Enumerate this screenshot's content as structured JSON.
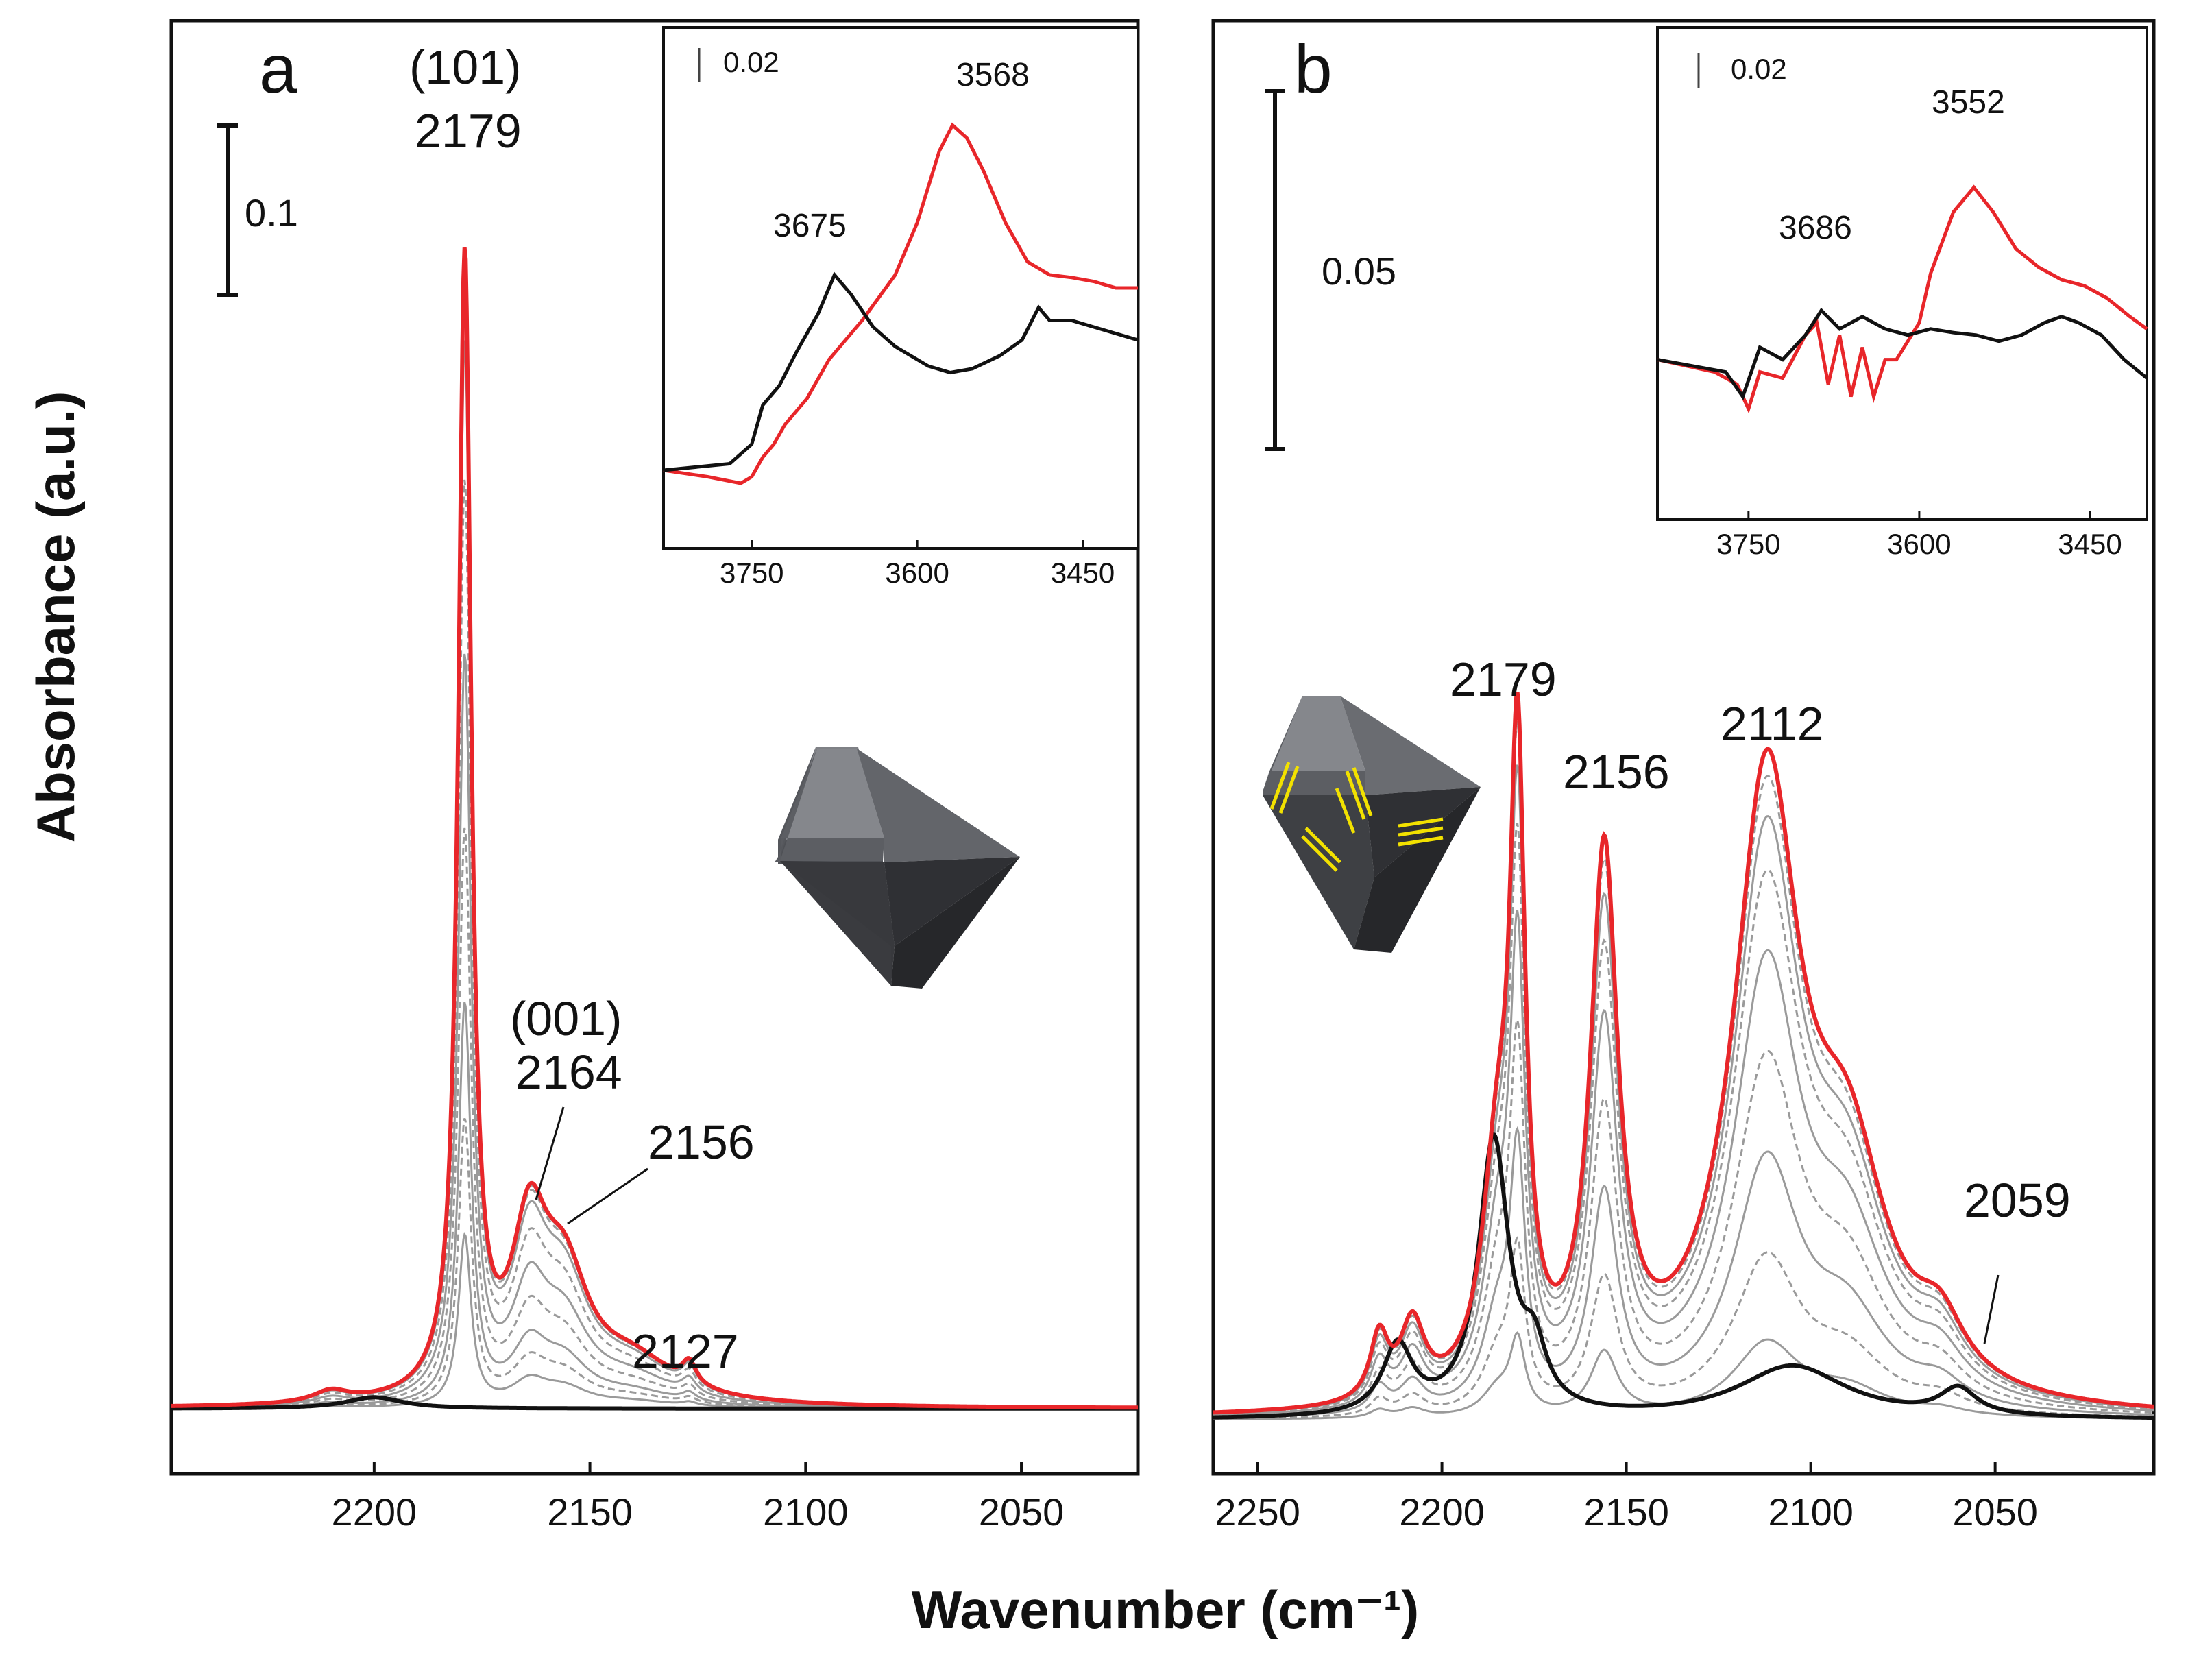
{
  "colors": {
    "activated": "#e8262a",
    "before": "#111111",
    "intermediate": "#9a9a9a",
    "octahedron": "#55575c",
    "adsorbate": "#f2e100"
  },
  "axis_labels": {
    "x": "Wavenumber (cm⁻¹)",
    "y": "Absorbance (a.u.)"
  },
  "chart_data": [
    {
      "id": "a",
      "type": "line",
      "panel_label": "a",
      "x_ticks": [
        2200,
        2150,
        2100,
        2050
      ],
      "xlim": [
        2247,
        2023
      ],
      "ylim": [
        -0.01,
        0.36
      ],
      "scale_bar": {
        "value": 0.1,
        "label": "0.1"
      },
      "peak_labels": [
        "(101)",
        "2179",
        "(001)",
        "2164",
        "2156",
        "2127"
      ],
      "peaks": [
        {
          "x": 2179,
          "label": "2179",
          "face": "(101)"
        },
        {
          "x": 2164,
          "label": "2164",
          "face": "(001)"
        },
        {
          "x": 2156,
          "label": "2156"
        },
        {
          "x": 2127,
          "label": "2127"
        }
      ],
      "series": [
        {
          "color": "#e8262a",
          "components": [
            {
              "center": 2179,
              "height": 0.3,
              "width": 1.8
            },
            {
              "center": 2164,
              "height": 0.04,
              "width": 5
            },
            {
              "center": 2156,
              "height": 0.03,
              "width": 7
            },
            {
              "center": 2140,
              "height": 0.01,
              "width": 12
            },
            {
              "center": 2127,
              "height": 0.006,
              "width": 2
            },
            {
              "center": 2210,
              "height": 0.003,
              "width": 5
            }
          ]
        },
        {
          "color": "#111111",
          "components": [
            {
              "center": 2200,
              "height": 0.003,
              "width": 8
            }
          ]
        }
      ],
      "intermediate_scales": [
        0.15,
        0.25,
        0.35,
        0.5,
        0.65,
        0.8,
        0.92,
        0.97,
        0.99
      ],
      "inset": {
        "x_ticks": [
          3750,
          3600,
          3450
        ],
        "xlim": [
          3830,
          3400
        ],
        "ylim": [
          -0.15,
          0.25
        ],
        "scale_bar": {
          "value": 0.02,
          "label": "0.02"
        },
        "peak_labels": [
          "3568",
          "3675"
        ],
        "series": [
          {
            "color": "#e8262a",
            "points": [
              [
                3830,
                -0.09
              ],
              [
                3790,
                -0.095
              ],
              [
                3760,
                -0.1
              ],
              [
                3750,
                -0.095
              ],
              [
                3740,
                -0.08
              ],
              [
                3730,
                -0.07
              ],
              [
                3720,
                -0.055
              ],
              [
                3700,
                -0.035
              ],
              [
                3680,
                -0.005
              ],
              [
                3650,
                0.025
              ],
              [
                3620,
                0.06
              ],
              [
                3600,
                0.1
              ],
              [
                3580,
                0.155
              ],
              [
                3568,
                0.175
              ],
              [
                3555,
                0.165
              ],
              [
                3540,
                0.14
              ],
              [
                3520,
                0.1
              ],
              [
                3500,
                0.07
              ],
              [
                3480,
                0.06
              ],
              [
                3460,
                0.058
              ],
              [
                3440,
                0.055
              ],
              [
                3420,
                0.05
              ],
              [
                3400,
                0.05
              ]
            ]
          },
          {
            "color": "#111111",
            "points": [
              [
                3830,
                -0.09
              ],
              [
                3770,
                -0.085
              ],
              [
                3750,
                -0.07
              ],
              [
                3740,
                -0.04
              ],
              [
                3725,
                -0.025
              ],
              [
                3710,
                0.0
              ],
              [
                3690,
                0.03
              ],
              [
                3675,
                0.06
              ],
              [
                3660,
                0.045
              ],
              [
                3640,
                0.02
              ],
              [
                3620,
                0.005
              ],
              [
                3590,
                -0.01
              ],
              [
                3570,
                -0.015
              ],
              [
                3550,
                -0.012
              ],
              [
                3525,
                -0.002
              ],
              [
                3505,
                0.01
              ],
              [
                3490,
                0.035
              ],
              [
                3480,
                0.025
              ],
              [
                3460,
                0.025
              ],
              [
                3440,
                0.02
              ],
              [
                3420,
                0.015
              ],
              [
                3400,
                0.01
              ]
            ]
          }
        ]
      }
    },
    {
      "id": "b",
      "type": "line",
      "panel_label": "b",
      "x_ticks": [
        2250,
        2200,
        2150,
        2100,
        2050
      ],
      "xlim": [
        2262,
        2007
      ],
      "ylim": [
        -0.005,
        0.26
      ],
      "scale_bar": {
        "value": 0.05,
        "label": "0.05"
      },
      "peak_labels": [
        "2179",
        "2156",
        "2112",
        "2059"
      ],
      "peaks": [
        {
          "x": 2179,
          "label": "2179"
        },
        {
          "x": 2156,
          "label": "2156"
        },
        {
          "x": 2112,
          "label": "2112"
        },
        {
          "x": 2059,
          "label": "2059"
        }
      ],
      "series": [
        {
          "color": "#e8262a",
          "components": [
            {
              "center": 2179.5,
              "height": 0.112,
              "width": 2.5
            },
            {
              "center": 2156,
              "height": 0.1,
              "width": 4.5
            },
            {
              "center": 2112,
              "height": 0.115,
              "width": 11
            },
            {
              "center": 2090,
              "height": 0.04,
              "width": 13
            },
            {
              "center": 2185,
              "height": 0.04,
              "width": 5
            },
            {
              "center": 2065,
              "height": 0.01,
              "width": 8
            },
            {
              "center": 2217,
              "height": 0.012,
              "width": 3
            },
            {
              "center": 2208,
              "height": 0.014,
              "width": 4
            }
          ]
        },
        {
          "color": "#111111",
          "components": [
            {
              "center": 2186,
              "height": 0.052,
              "width": 5
            },
            {
              "center": 2175,
              "height": 0.01,
              "width": 4
            },
            {
              "center": 2212,
              "height": 0.013,
              "width": 5
            },
            {
              "center": 2105,
              "height": 0.01,
              "width": 18
            },
            {
              "center": 2060,
              "height": 0.005,
              "width": 6
            }
          ]
        }
      ],
      "intermediate_scales": [
        0.12,
        0.25,
        0.4,
        0.55,
        0.7,
        0.82,
        0.9,
        0.96
      ],
      "inset": {
        "x_ticks": [
          3750,
          3600,
          3450
        ],
        "xlim": [
          3830,
          3400
        ],
        "ylim": [
          -0.15,
          0.25
        ],
        "scale_bar": {
          "value": 0.02,
          "label": "0.02"
        },
        "peak_labels": [
          "3552",
          "3686"
        ],
        "series": [
          {
            "color": "#e8262a",
            "points": [
              [
                3830,
                -0.02
              ],
              [
                3780,
                -0.03
              ],
              [
                3760,
                -0.04
              ],
              [
                3750,
                -0.06
              ],
              [
                3740,
                -0.03
              ],
              [
                3720,
                -0.035
              ],
              [
                3700,
                0.0
              ],
              [
                3690,
                0.01
              ],
              [
                3680,
                -0.04
              ],
              [
                3670,
                0.0
              ],
              [
                3660,
                -0.05
              ],
              [
                3650,
                -0.01
              ],
              [
                3640,
                -0.05
              ],
              [
                3630,
                -0.02
              ],
              [
                3620,
                -0.02
              ],
              [
                3600,
                0.01
              ],
              [
                3590,
                0.05
              ],
              [
                3570,
                0.1
              ],
              [
                3552,
                0.12
              ],
              [
                3535,
                0.1
              ],
              [
                3515,
                0.07
              ],
              [
                3495,
                0.055
              ],
              [
                3475,
                0.045
              ],
              [
                3455,
                0.04
              ],
              [
                3435,
                0.03
              ],
              [
                3415,
                0.015
              ],
              [
                3400,
                0.005
              ]
            ]
          },
          {
            "color": "#111111",
            "points": [
              [
                3830,
                -0.02
              ],
              [
                3770,
                -0.03
              ],
              [
                3755,
                -0.05
              ],
              [
                3740,
                -0.01
              ],
              [
                3720,
                -0.02
              ],
              [
                3700,
                0.0
              ],
              [
                3686,
                0.02
              ],
              [
                3670,
                0.005
              ],
              [
                3650,
                0.015
              ],
              [
                3630,
                0.005
              ],
              [
                3610,
                0.0
              ],
              [
                3590,
                0.005
              ],
              [
                3570,
                0.002
              ],
              [
                3550,
                0.0
              ],
              [
                3530,
                -0.005
              ],
              [
                3510,
                0.0
              ],
              [
                3490,
                0.01
              ],
              [
                3475,
                0.015
              ],
              [
                3460,
                0.01
              ],
              [
                3440,
                0.0
              ],
              [
                3420,
                -0.02
              ],
              [
                3400,
                -0.035
              ]
            ]
          }
        ]
      }
    }
  ]
}
